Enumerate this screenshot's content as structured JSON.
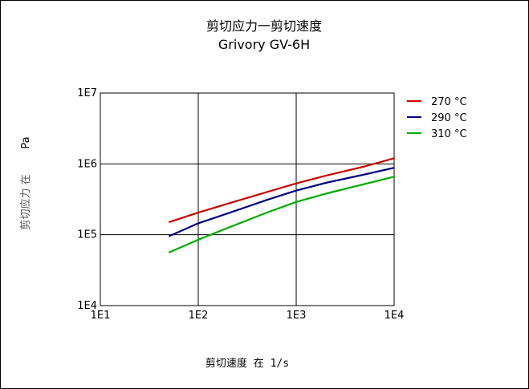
{
  "chart_data": {
    "type": "line",
    "title": "剪切应力一剪切速度",
    "subtitle": "Grivory GV-6H",
    "xlabel": "剪切速度 在 1/s",
    "ylabel_main": "剪切应力 在",
    "ylabel_unit": "Pa",
    "xscale": "log",
    "yscale": "log",
    "xlim": [
      10,
      10000
    ],
    "ylim": [
      10000,
      10000000
    ],
    "grid": true,
    "legend_position": "right",
    "x_ticks": [
      "1E1",
      "1E2",
      "1E3",
      "1E4"
    ],
    "y_ticks": [
      "1E4",
      "1E5",
      "1E6",
      "1E7"
    ],
    "series": [
      {
        "name": "270 °C",
        "color": "#cc0000",
        "x": [
          50,
          100,
          200,
          500,
          1000,
          2000,
          5000,
          10000
        ],
        "y": [
          150000,
          205000,
          275000,
          400000,
          530000,
          680000,
          920000,
          1200000
        ]
      },
      {
        "name": "290 °C",
        "color": "#000080",
        "x": [
          50,
          100,
          200,
          500,
          1000,
          2000,
          5000,
          10000
        ],
        "y": [
          95000,
          145000,
          200000,
          310000,
          420000,
          540000,
          710000,
          880000
        ]
      },
      {
        "name": "310 °C",
        "color": "#00aa00",
        "x": [
          50,
          100,
          200,
          500,
          1000,
          2000,
          5000,
          10000
        ],
        "y": [
          56000,
          85000,
          125000,
          205000,
          290000,
          380000,
          520000,
          660000
        ]
      }
    ]
  }
}
